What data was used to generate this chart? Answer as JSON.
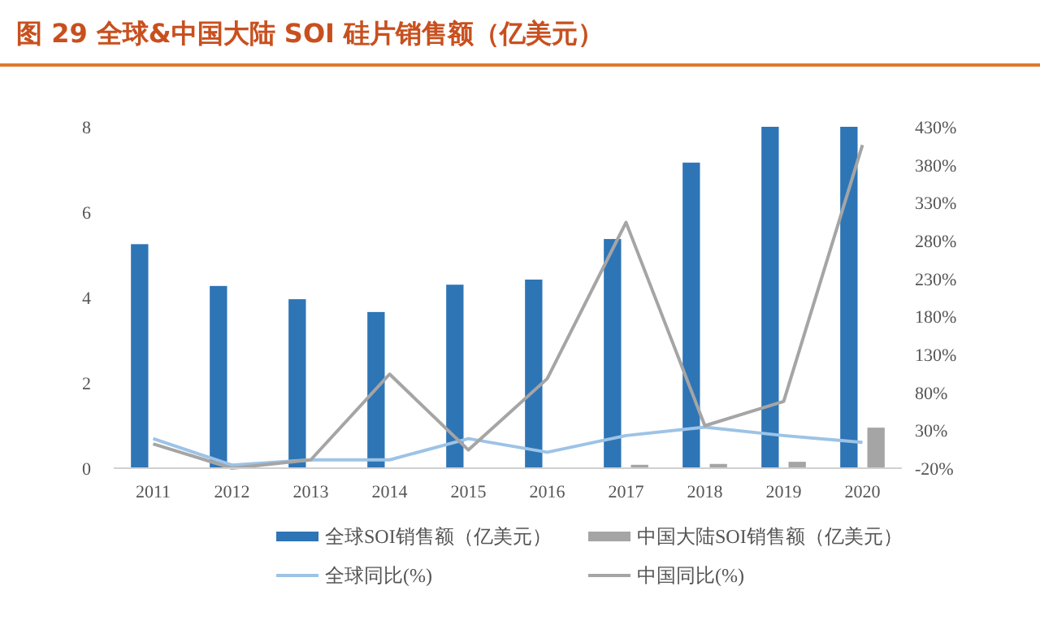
{
  "chart_data": {
    "type": "bar",
    "title": "图 29 全球&中国大陆 SOI 硅片销售额（亿美元）",
    "categories": [
      "2011",
      "2012",
      "2013",
      "2014",
      "2015",
      "2016",
      "2017",
      "2018",
      "2019",
      "2020"
    ],
    "series": [
      {
        "name": "全球SOI销售额（亿美元）",
        "color": "#2e75b6",
        "values": [
          5.25,
          4.27,
          3.96,
          3.66,
          4.3,
          4.42,
          5.37,
          7.16,
          8,
          8
        ]
      },
      {
        "name": "中国大陆SOI销售额（亿美元）",
        "color": "#a5a5a5",
        "values": [
          null,
          null,
          null,
          null,
          null,
          null,
          0.08,
          0.1,
          0.15,
          0.95
        ]
      },
      {
        "name": "全球同比(%)",
        "type": "line",
        "axis": "y2",
        "color": "#9dc3e6",
        "values": [
          19,
          -16,
          -9,
          -9,
          19,
          1,
          23,
          34,
          23,
          14
        ]
      },
      {
        "name": "中国同比(%)",
        "type": "line",
        "axis": "y2",
        "color": "#a5a5a5",
        "values": [
          12,
          -20,
          -9,
          104,
          4,
          98,
          304,
          36,
          68,
          406
        ]
      }
    ],
    "ylim": [
      0,
      8
    ],
    "yticks": [
      0,
      2,
      4,
      6,
      8
    ],
    "y2lim": [
      -20,
      430
    ],
    "y2ticks": [
      {
        "value": -20,
        "label": "-20%"
      },
      {
        "value": 30,
        "label": "30%"
      },
      {
        "value": 80,
        "label": "80%"
      },
      {
        "value": 130,
        "label": "130%"
      },
      {
        "value": 180,
        "label": "180%"
      },
      {
        "value": 230,
        "label": "230%"
      },
      {
        "value": 280,
        "label": "280%"
      },
      {
        "value": 330,
        "label": "330%"
      },
      {
        "value": 380,
        "label": "380%"
      },
      {
        "value": 430,
        "label": "430%"
      }
    ],
    "legend": "bottom",
    "grid": false,
    "marker": "none",
    "line_style": "solid"
  }
}
